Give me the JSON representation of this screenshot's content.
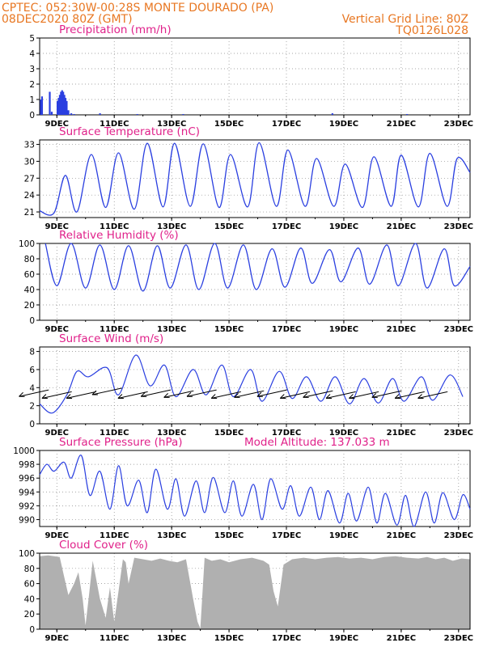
{
  "header": {
    "line1_left": "CPTEC:   052:30W-00:28S   MONTE DOURADO (PA)",
    "line2_left": "08DEC2020 80Z (GMT)",
    "line2_right": "Vertical Grid Line: 80Z",
    "line3_right": "TQ0126L028",
    "color": "#e87722"
  },
  "colors": {
    "title": "#e0218a",
    "line": "#2a3fe0",
    "cloud": "#b0b0b0",
    "arrow": "#000000"
  },
  "x_axis": {
    "ticks": [
      "9DEC",
      "11DEC",
      "13DEC",
      "15DEC",
      "17DEC",
      "19DEC",
      "21DEC",
      "23DEC"
    ],
    "start": "08DEC2020 08Z",
    "end": "23DEC2020"
  },
  "chart_data": [
    {
      "id": "precip",
      "type": "bar",
      "title": "Precipitation (mm/h)",
      "ylim": [
        0,
        5
      ],
      "yticks": [
        0,
        1,
        2,
        3,
        4,
        5
      ],
      "grid": true,
      "x_days": [
        0.04,
        0.08,
        0.35,
        0.42,
        0.62,
        0.66,
        0.7,
        0.74,
        0.78,
        0.82,
        0.86,
        0.9,
        0.94,
        1.0,
        1.1,
        1.2,
        2.1,
        3.4,
        5.0,
        10.2,
        12.8
      ],
      "values": [
        1.0,
        1.2,
        1.5,
        0.2,
        0.9,
        1.1,
        1.3,
        1.5,
        1.6,
        1.5,
        1.3,
        1.1,
        0.9,
        0.3,
        0.1,
        0.05,
        0.1,
        0.05,
        0.05,
        0.1,
        0.05
      ]
    },
    {
      "id": "temp",
      "type": "line",
      "title": "Surface Temperature (nC)",
      "ylim": [
        20,
        33.8
      ],
      "yticks": [
        21,
        24,
        27,
        30,
        33
      ],
      "grid": true,
      "max_days": [
        0.9,
        1.8,
        2.75,
        3.75,
        4.7,
        5.7,
        6.65,
        7.65,
        8.65,
        9.65,
        10.65,
        11.65,
        12.6,
        13.6,
        14.55
      ],
      "max_values": [
        27.5,
        31.2,
        31.5,
        33.2,
        33.2,
        33.1,
        31.2,
        33.3,
        32.0,
        30.5,
        29.5,
        30.8,
        31.1,
        31.4,
        30.5
      ],
      "min_days": [
        0.5,
        1.3,
        2.3,
        3.3,
        4.3,
        5.25,
        6.25,
        7.25,
        8.25,
        9.25,
        10.25,
        11.25,
        12.25,
        13.2,
        14.2
      ],
      "min_values": [
        20.8,
        21.0,
        21.8,
        21.5,
        21.9,
        22.0,
        21.8,
        21.9,
        22.0,
        22.0,
        22.0,
        21.8,
        22.0,
        21.9,
        22.0
      ],
      "start_value": 21.2,
      "end_value": 28.0
    },
    {
      "id": "rh",
      "type": "line",
      "title": "Relative Humidity (%)",
      "ylim": [
        0,
        100
      ],
      "yticks": [
        0,
        20,
        40,
        60,
        80,
        100
      ],
      "grid": true,
      "min_days": [
        0.6,
        1.6,
        2.6,
        3.6,
        4.55,
        5.55,
        6.55,
        7.55,
        8.55,
        9.5,
        10.5,
        11.5,
        12.5,
        13.5,
        14.45
      ],
      "min_values": [
        45,
        42,
        40,
        38,
        42,
        40,
        42,
        40,
        43,
        48,
        50,
        47,
        45,
        42,
        45
      ],
      "max_days": [
        0.2,
        1.1,
        2.1,
        3.1,
        4.1,
        5.1,
        6.1,
        7.1,
        8.1,
        9.1,
        10.1,
        11.1,
        12.1,
        13.1,
        14.1
      ],
      "max_values": [
        100,
        100,
        98,
        97,
        97,
        98,
        100,
        98,
        93,
        94,
        92,
        94,
        98,
        100,
        93
      ],
      "end_value": 70
    },
    {
      "id": "wind",
      "type": "line",
      "title": "Surface Wind (m/s)",
      "ylim": [
        0,
        8.5
      ],
      "yticks": [
        0,
        2,
        4,
        6,
        8
      ],
      "grid": true,
      "peak_days": [
        0.0,
        0.45,
        0.95,
        1.3,
        1.7,
        2.35,
        2.75,
        3.35,
        3.85,
        4.35,
        4.75,
        5.35,
        5.8,
        6.35,
        6.75,
        7.35,
        7.75,
        8.35,
        8.8,
        9.3,
        9.8,
        10.3,
        10.8,
        11.3,
        11.8,
        12.3,
        12.7,
        13.3,
        13.7,
        14.3,
        14.75
      ],
      "peak_values": [
        2.2,
        1.2,
        3.2,
        5.8,
        5.2,
        6.2,
        3.2,
        7.6,
        4.2,
        6.5,
        3.0,
        6.0,
        3.2,
        6.5,
        3.0,
        6.0,
        2.5,
        5.8,
        2.8,
        5.2,
        2.5,
        5.2,
        2.2,
        5.0,
        2.3,
        5.0,
        2.5,
        5.2,
        2.6,
        5.4,
        3.0
      ],
      "barb_days": [
        0.3,
        1.1,
        1.95,
        2.85,
        3.75,
        4.55,
        5.35,
        6.15,
        7.0,
        7.8,
        8.6,
        9.4,
        10.2,
        11.0,
        11.8,
        12.6,
        13.4,
        14.2
      ],
      "barb_speed": [
        3.2,
        3.0,
        3.0,
        3.4,
        3.0,
        3.2,
        3.1,
        3.2,
        3.0,
        3.1,
        3.2,
        3.0,
        3.1,
        3.0,
        3.0,
        3.1,
        3.0,
        3.0
      ]
    },
    {
      "id": "press",
      "type": "line",
      "title": "Surface Pressure (hPa)",
      "altitude_label": "Model Altitude: 137.033 m",
      "ylim": [
        989,
        1000
      ],
      "yticks": [
        990,
        992,
        994,
        996,
        998,
        1000
      ],
      "grid": true,
      "peak_days": [
        0.0,
        0.25,
        0.5,
        0.85,
        1.1,
        1.45,
        1.75,
        2.1,
        2.45,
        2.75,
        3.05,
        3.45,
        3.75,
        4.05,
        4.45,
        4.75,
        5.05,
        5.45,
        5.75,
        6.05,
        6.45,
        6.75,
        7.05,
        7.45,
        7.75,
        8.05,
        8.45,
        8.75,
        9.05,
        9.45,
        9.75,
        10.05,
        10.45,
        10.75,
        11.05,
        11.45,
        11.75,
        12.05,
        12.45,
        12.75,
        13.05,
        13.45,
        13.75,
        14.05,
        14.45,
        14.75,
        15.0
      ],
      "peak_values": [
        996.5,
        998.0,
        997.0,
        998.3,
        996.0,
        999.3,
        993.5,
        997.0,
        991.5,
        997.8,
        992.0,
        995.7,
        991.0,
        997.3,
        991.5,
        995.9,
        990.5,
        995.6,
        991.0,
        996.1,
        991.0,
        995.6,
        990.5,
        995.1,
        990.0,
        995.9,
        991.5,
        994.9,
        990.5,
        994.7,
        990.0,
        994.2,
        989.5,
        993.8,
        989.8,
        994.7,
        989.5,
        993.8,
        989.2,
        993.5,
        989.0,
        994.0,
        989.5,
        993.9,
        990.0,
        993.6,
        991.5
      ]
    },
    {
      "id": "cloud",
      "type": "area",
      "title": "Cloud Cover (%)",
      "ylim": [
        0,
        100
      ],
      "yticks": [
        0,
        20,
        40,
        60,
        80,
        100
      ],
      "grid": true,
      "x_days": [
        0.0,
        0.3,
        0.7,
        0.85,
        1.0,
        1.2,
        1.35,
        1.5,
        1.6,
        1.72,
        1.85,
        1.95,
        2.1,
        2.3,
        2.45,
        2.6,
        2.75,
        2.9,
        3.0,
        3.1,
        3.3,
        3.6,
        3.9,
        4.2,
        4.5,
        4.8,
        5.1,
        5.35,
        5.5,
        5.6,
        5.75,
        6.0,
        6.3,
        6.6,
        7.0,
        7.4,
        7.8,
        8.0,
        8.15,
        8.3,
        8.5,
        8.8,
        9.2,
        9.6,
        10.0,
        10.4,
        10.8,
        11.2,
        11.6,
        12.0,
        12.4,
        12.8,
        13.2,
        13.5,
        13.8,
        14.1,
        14.4,
        14.7,
        15.0
      ],
      "values": [
        96,
        97,
        95,
        70,
        45,
        60,
        75,
        40,
        5,
        45,
        90,
        70,
        40,
        15,
        55,
        10,
        50,
        92,
        88,
        60,
        94,
        92,
        90,
        93,
        90,
        88,
        92,
        40,
        10,
        1,
        94,
        90,
        92,
        88,
        92,
        94,
        90,
        85,
        50,
        30,
        85,
        92,
        94,
        92,
        94,
        95,
        93,
        94,
        92,
        95,
        96,
        94,
        93,
        95,
        92,
        94,
        90,
        93,
        92
      ]
    }
  ]
}
